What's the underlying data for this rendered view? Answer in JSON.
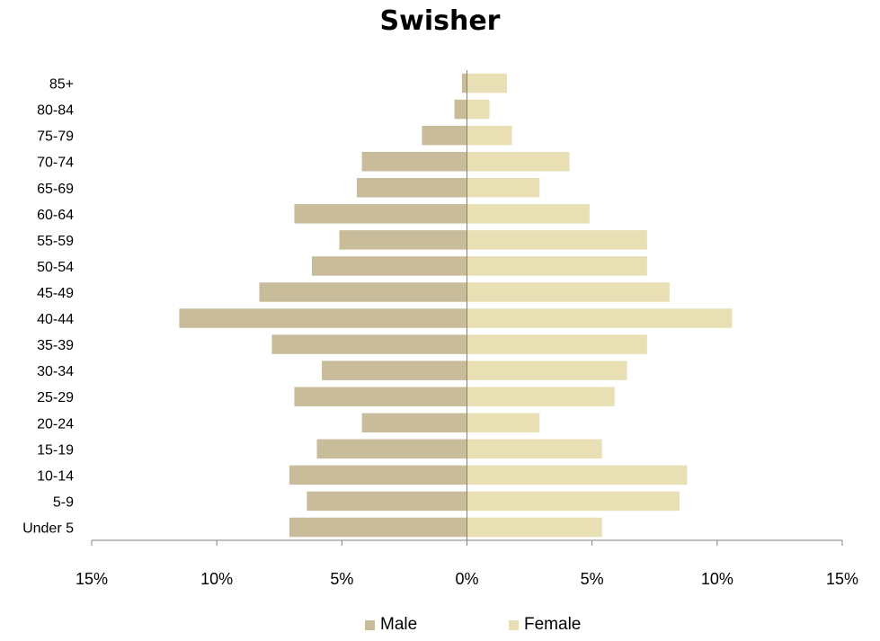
{
  "chart_data": {
    "type": "bar",
    "orientation": "horizontal",
    "title": "Swisher",
    "categories": [
      "Under 5",
      "5-9",
      "10-14",
      "15-19",
      "20-24",
      "25-29",
      "30-34",
      "35-39",
      "40-44",
      "45-49",
      "50-54",
      "55-59",
      "60-64",
      "65-69",
      "70-74",
      "75-79",
      "80-84",
      "85+"
    ],
    "series": [
      {
        "name": "Male",
        "color": "#C8BC9A",
        "values": [
          -7.1,
          -6.4,
          -7.1,
          -6.0,
          -4.2,
          -6.9,
          -5.8,
          -7.8,
          -11.5,
          -8.3,
          -6.2,
          -5.1,
          -6.9,
          -4.4,
          -4.2,
          -1.8,
          -0.5,
          -0.2
        ]
      },
      {
        "name": "Female",
        "color": "#E8E0B4",
        "values": [
          5.4,
          8.5,
          8.8,
          5.4,
          2.9,
          5.9,
          6.4,
          7.2,
          10.6,
          8.1,
          7.2,
          7.2,
          4.9,
          2.9,
          4.1,
          1.8,
          0.9,
          1.6
        ]
      }
    ],
    "xlim": [
      -15,
      15
    ],
    "xticks": [
      -15,
      -10,
      -5,
      0,
      5,
      10,
      15
    ],
    "xtick_labels": [
      "15%",
      "10%",
      "5%",
      "0%",
      "5%",
      "10%",
      "15%"
    ],
    "legend_position": "bottom",
    "grid": false
  }
}
